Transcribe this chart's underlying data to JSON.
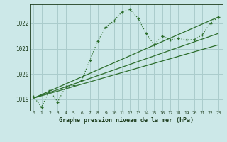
{
  "title": "Graphe pression niveau de la mer (hPa)",
  "background_color": "#cce8e8",
  "grid_color": "#aacccc",
  "line_color": "#2d6e2d",
  "text_color": "#1a3a1a",
  "ylim": [
    1018.55,
    1022.75
  ],
  "xlim": [
    -0.5,
    23.5
  ],
  "yticks": [
    1019,
    1020,
    1021,
    1022
  ],
  "main_x": [
    0,
    1,
    2,
    3,
    4,
    5,
    6,
    7,
    8,
    9,
    10,
    11,
    12,
    13,
    14,
    15,
    16,
    17,
    18,
    19,
    20,
    21,
    22,
    23
  ],
  "main_y": [
    1019.1,
    1018.7,
    1019.35,
    1018.9,
    1019.5,
    1019.55,
    1019.75,
    1020.55,
    1021.3,
    1021.85,
    1022.1,
    1022.45,
    1022.55,
    1022.2,
    1021.6,
    1021.15,
    1021.5,
    1021.35,
    1021.4,
    1021.35,
    1021.35,
    1021.55,
    1022.0,
    1022.25
  ],
  "trend_lines": [
    {
      "x": [
        0,
        23
      ],
      "y": [
        1019.05,
        1022.25
      ]
    },
    {
      "x": [
        0,
        23
      ],
      "y": [
        1019.05,
        1021.6
      ]
    },
    {
      "x": [
        0,
        23
      ],
      "y": [
        1019.05,
        1021.15
      ]
    }
  ]
}
